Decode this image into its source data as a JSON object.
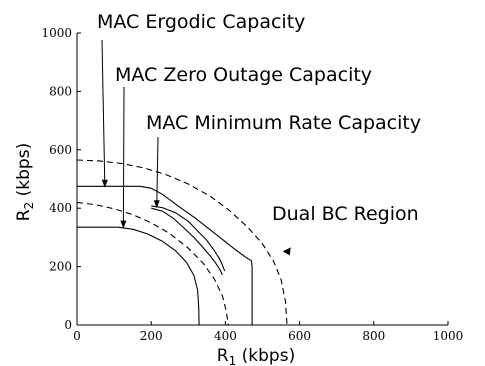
{
  "chart_data": {
    "type": "line",
    "title": "",
    "xlabel": {
      "main": "R",
      "sub": "1",
      "unit": " (kbps)"
    },
    "ylabel": {
      "main": "R",
      "sub": "2",
      "unit": " (kbps)"
    },
    "xlim": [
      0,
      1000
    ],
    "ylim": [
      0,
      1000
    ],
    "xticks": [
      0,
      200,
      400,
      600,
      800,
      1000
    ],
    "yticks": [
      0,
      200,
      400,
      600,
      800,
      1000
    ],
    "grid": false,
    "series": [
      {
        "style": "solid",
        "points": [
          [
            0,
            475
          ],
          [
            170,
            475
          ],
          [
            200,
            468
          ],
          [
            230,
            448
          ],
          [
            270,
            410
          ],
          [
            320,
            365
          ],
          [
            380,
            305
          ],
          [
            430,
            255
          ],
          [
            455,
            232
          ],
          [
            470,
            220
          ],
          [
            472,
            200
          ],
          [
            472,
            0
          ]
        ]
      },
      {
        "style": "dashed",
        "points": [
          [
            0,
            565
          ],
          [
            60,
            562
          ],
          [
            120,
            553
          ],
          [
            180,
            538
          ],
          [
            240,
            515
          ],
          [
            300,
            483
          ],
          [
            360,
            440
          ],
          [
            410,
            393
          ],
          [
            460,
            335
          ],
          [
            500,
            278
          ],
          [
            530,
            218
          ],
          [
            550,
            155
          ],
          [
            562,
            80
          ],
          [
            566,
            0
          ]
        ]
      },
      {
        "style": "solid",
        "points": [
          [
            0,
            335
          ],
          [
            110,
            335
          ],
          [
            150,
            328
          ],
          [
            190,
            312
          ],
          [
            230,
            287
          ],
          [
            265,
            255
          ],
          [
            295,
            215
          ],
          [
            315,
            170
          ],
          [
            325,
            120
          ],
          [
            328,
            60
          ],
          [
            329,
            0
          ]
        ]
      },
      {
        "style": "dashed",
        "points": [
          [
            0,
            420
          ],
          [
            50,
            412
          ],
          [
            100,
            398
          ],
          [
            150,
            378
          ],
          [
            200,
            350
          ],
          [
            250,
            313
          ],
          [
            300,
            263
          ],
          [
            340,
            212
          ],
          [
            370,
            158
          ],
          [
            392,
            100
          ],
          [
            402,
            50
          ],
          [
            408,
            0
          ]
        ]
      },
      {
        "style": "solid",
        "points": [
          [
            200,
            408
          ],
          [
            230,
            402
          ],
          [
            265,
            385
          ],
          [
            300,
            355
          ],
          [
            325,
            322
          ],
          [
            350,
            290
          ],
          [
            370,
            255
          ],
          [
            385,
            225
          ],
          [
            392,
            205
          ],
          [
            398,
            185
          ]
        ]
      },
      {
        "style": "solid",
        "points": [
          [
            200,
            400
          ],
          [
            230,
            390
          ],
          [
            260,
            365
          ],
          [
            290,
            330
          ],
          [
            315,
            300
          ],
          [
            340,
            265
          ],
          [
            360,
            235
          ],
          [
            375,
            210
          ],
          [
            385,
            190
          ],
          [
            392,
            172
          ]
        ]
      }
    ],
    "annotations": [
      {
        "text": "MAC Ergodic Capacity",
        "arrow_to": [
          75,
          470
        ]
      },
      {
        "text": "MAC Zero Outage Capacity",
        "arrow_to": [
          125,
          330
        ]
      },
      {
        "text": "MAC Minimum Rate Capacity",
        "arrow_to": [
          215,
          400
        ]
      },
      {
        "text": "Dual BC Region",
        "arrow_to": [
          568,
          252
        ]
      }
    ]
  }
}
